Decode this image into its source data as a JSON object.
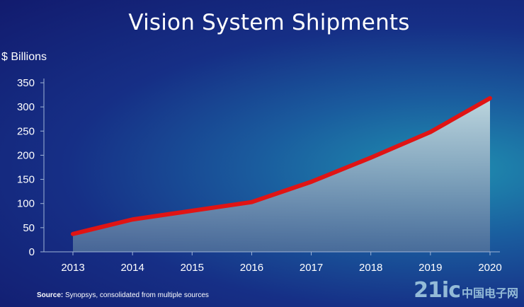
{
  "chart_data": {
    "type": "area",
    "title": "Vision System Shipments",
    "ylabel": "$ Billions",
    "xlabel": "",
    "categories": [
      "2013",
      "2014",
      "2015",
      "2016",
      "2017",
      "2018",
      "2019",
      "2020"
    ],
    "series": [
      {
        "values": [
          37,
          67,
          85,
          103,
          145,
          195,
          248,
          318
        ]
      }
    ],
    "y_ticks": [
      0,
      50,
      100,
      150,
      200,
      250,
      300,
      350
    ],
    "ylim": [
      0,
      350
    ],
    "grid": false,
    "colors": {
      "line": "#e01414",
      "fill_top": "#c6dde2",
      "fill_bottom": "#50709a",
      "axis": "#9fb4d6"
    }
  },
  "source": {
    "label": "Source:",
    "text": "Synopsys, consolidated  from  multiple  sources"
  },
  "watermark": {
    "text": "21ic",
    "suffix": "中国电子网"
  }
}
